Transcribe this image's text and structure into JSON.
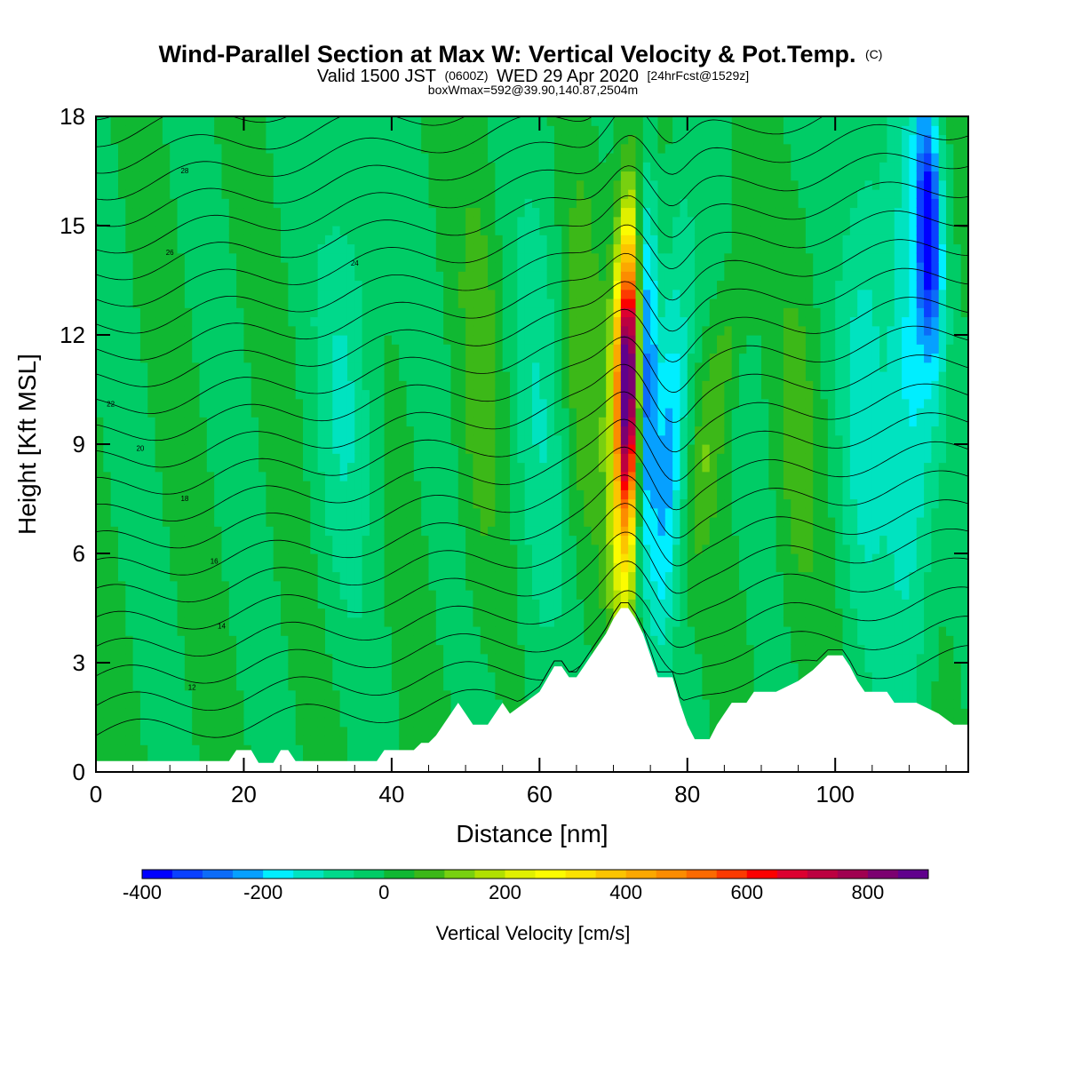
{
  "chart_data": {
    "type": "heatmap",
    "title": "Wind-Parallel Section at Max W: Vertical Velocity & Pot.Temp.",
    "title_mark": "(C)",
    "subtitle": {
      "valid": "Valid 1500 JST",
      "utc": "(0600Z)",
      "date": "WED 29 Apr 2020",
      "forecast": "[24hrFcst@1529z]"
    },
    "line3": "boxWmax=592@39.90,140.87,2504m",
    "xlabel": "Distance [nm]",
    "ylabel": "Height [Kft MSL]",
    "xlim": [
      0,
      118
    ],
    "ylim": [
      0,
      18
    ],
    "x_ticks": [
      0,
      20,
      40,
      60,
      80,
      100
    ],
    "y_ticks": [
      0,
      3,
      6,
      9,
      12,
      15,
      18
    ],
    "colorbar": {
      "title": "Vertical Velocity [cm/s]",
      "min": -400,
      "max": 900,
      "step": 50,
      "tick_labels": [
        -400,
        -200,
        0,
        200,
        400,
        600,
        800
      ],
      "colors": [
        "#0000ff",
        "#0a40ff",
        "#0c6cf8",
        "#06a0ff",
        "#00eeff",
        "#00e3c0",
        "#00d98b",
        "#00cc66",
        "#10b832",
        "#3cb818",
        "#78d010",
        "#b0e000",
        "#e0f000",
        "#fcfc00",
        "#fce200",
        "#fcc400",
        "#fca800",
        "#fc8c00",
        "#fc6a00",
        "#fc3a00",
        "#fc0000",
        "#dc0030",
        "#bc0040",
        "#a00050",
        "#7c0070",
        "#60008c"
      ]
    },
    "terrain": [
      [
        0,
        0.3
      ],
      [
        2,
        0.3
      ],
      [
        4,
        0.3
      ],
      [
        6,
        0.3
      ],
      [
        8,
        0.3
      ],
      [
        10,
        0.3
      ],
      [
        12,
        0.3
      ],
      [
        14,
        0.3
      ],
      [
        16,
        0.3
      ],
      [
        18,
        0.3
      ],
      [
        19,
        0.6
      ],
      [
        21,
        0.6
      ],
      [
        22,
        0.25
      ],
      [
        24,
        0.25
      ],
      [
        25,
        0.6
      ],
      [
        26,
        0.6
      ],
      [
        27,
        0.3
      ],
      [
        30,
        0.3
      ],
      [
        34,
        0.3
      ],
      [
        38,
        0.3
      ],
      [
        39,
        0.6
      ],
      [
        41,
        0.6
      ],
      [
        43,
        0.6
      ],
      [
        44,
        0.8
      ],
      [
        45,
        0.8
      ],
      [
        46,
        1.0
      ],
      [
        47,
        1.3
      ],
      [
        48,
        1.6
      ],
      [
        49,
        1.9
      ],
      [
        50,
        1.6
      ],
      [
        51,
        1.3
      ],
      [
        53,
        1.3
      ],
      [
        54,
        1.6
      ],
      [
        55,
        1.9
      ],
      [
        56,
        1.6
      ],
      [
        58,
        1.9
      ],
      [
        60,
        2.2
      ],
      [
        62,
        2.9
      ],
      [
        63,
        2.9
      ],
      [
        64,
        2.6
      ],
      [
        65,
        2.6
      ],
      [
        66,
        2.9
      ],
      [
        67,
        3.2
      ],
      [
        68,
        3.5
      ],
      [
        69,
        3.8
      ],
      [
        70,
        4.2
      ],
      [
        71,
        4.5
      ],
      [
        72,
        4.5
      ],
      [
        73,
        4.2
      ],
      [
        74,
        3.8
      ],
      [
        75,
        3.2
      ],
      [
        76,
        2.6
      ],
      [
        78,
        2.6
      ],
      [
        79,
        1.9
      ],
      [
        80,
        1.3
      ],
      [
        81,
        0.9
      ],
      [
        83,
        0.9
      ],
      [
        84,
        1.3
      ],
      [
        85,
        1.6
      ],
      [
        86,
        1.9
      ],
      [
        88,
        1.9
      ],
      [
        89,
        2.2
      ],
      [
        92,
        2.2
      ],
      [
        95,
        2.5
      ],
      [
        97,
        2.8
      ],
      [
        99,
        3.2
      ],
      [
        101,
        3.2
      ],
      [
        102,
        2.9
      ],
      [
        103,
        2.5
      ],
      [
        104,
        2.2
      ],
      [
        107,
        2.2
      ],
      [
        108,
        1.9
      ],
      [
        111,
        1.9
      ],
      [
        114,
        1.6
      ],
      [
        116,
        1.3
      ],
      [
        118,
        1.3
      ]
    ],
    "theta_contours": [
      {
        "label": "12",
        "y0": 2.0,
        "label_x": 13
      },
      {
        "label": "14",
        "y0": 3.6,
        "label_x": 17
      },
      {
        "label": "16",
        "y0": 5.4,
        "label_x": 16
      },
      {
        "label": "18",
        "y0": 7.2,
        "label_x": 12
      },
      {
        "label": "20",
        "y0": 8.7,
        "label_x": 6
      },
      {
        "label": "22",
        "y0": 10.0,
        "label_x": 2
      },
      {
        "label": "24",
        "y0": 13.2,
        "label_x": 35
      },
      {
        "label": "26",
        "y0": 14.0,
        "label_x": 10
      },
      {
        "label": "28",
        "y0": 16.2,
        "label_x": 12
      }
    ]
  }
}
